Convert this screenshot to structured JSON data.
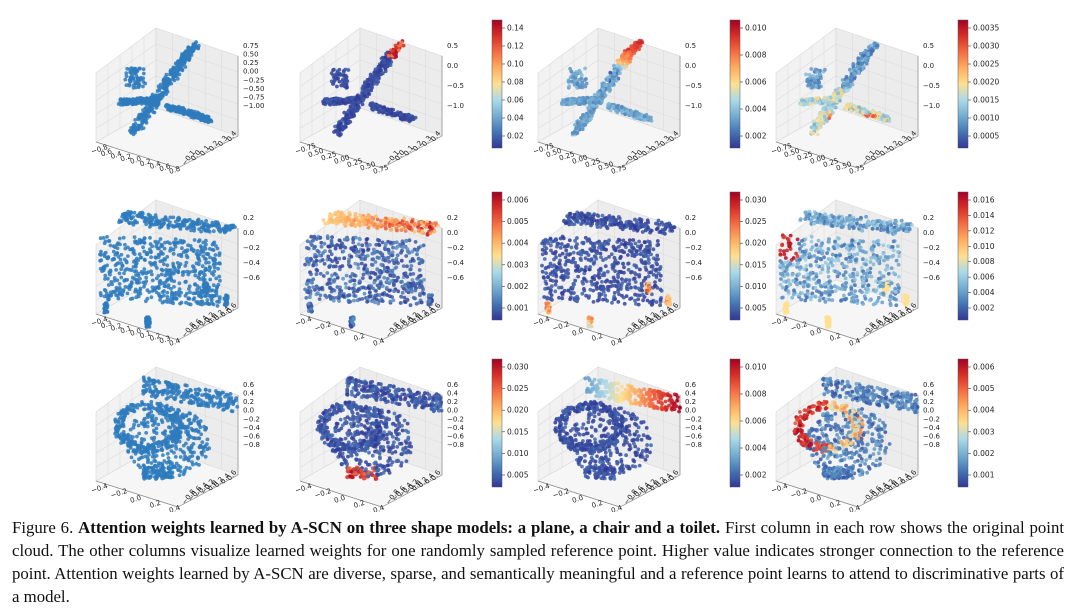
{
  "figure": {
    "rows": [
      {
        "name": "plane",
        "z_ticks": [
          "0.75",
          "0.50",
          "0.25",
          "0.00",
          "−0.25",
          "−0.50",
          "−0.75",
          "−1.00"
        ],
        "panels": [
          {
            "x_ticks": "−0.8 0.6 0.4 0.2 0.0 0.2 0.4 0.6 0.8",
            "y_ticks": [
              "0.4",
              "0.3",
              "0.2",
              "0.1",
              "0.0",
              "−0.1"
            ],
            "z_ticks": [
              "0.75",
              "0.50",
              "0.25",
              "0.00",
              "−0.25",
              "−0.50",
              "−0.75",
              "−1.00"
            ],
            "colorbar": null
          },
          {
            "x_ticks": "−0.75 0.50 0.25 0.00 0.25 0.50 0.75",
            "y_ticks": [
              "0.4",
              "0.3",
              "0.2",
              "0.1",
              "0.0",
              "−0.1"
            ],
            "z_ticks": [
              "0.5",
              "0.0",
              "−0.5",
              "−1.0"
            ],
            "colorbar": [
              "0.14",
              "0.12",
              "0.10",
              "0.08",
              "0.06",
              "0.04",
              "0.02"
            ]
          },
          {
            "x_ticks": "−0.75 0.50 0.25 0.00 0.25 0.50 0.75",
            "y_ticks": [
              "0.4",
              "0.3",
              "0.2",
              "0.1",
              "0.0",
              "−0.1"
            ],
            "z_ticks": [
              "0.5",
              "0.0",
              "−0.5",
              "−1.0"
            ],
            "colorbar": [
              "0.010",
              "0.008",
              "0.006",
              "0.004",
              "0.002"
            ]
          },
          {
            "x_ticks": "−0.75 0.50 0.25 0.00 0.25 0.50 0.75",
            "y_ticks": [
              "0.4",
              "0.3",
              "0.2",
              "0.1",
              "0.0",
              "−0.1"
            ],
            "z_ticks": [
              "0.5",
              "0.0",
              "−0.5",
              "−1.0"
            ],
            "colorbar": [
              "0.0035",
              "0.0030",
              "0.0025",
              "0.0020",
              "0.0015",
              "0.0010",
              "0.0005"
            ]
          }
        ]
      },
      {
        "name": "chair",
        "panels": [
          {
            "x_ticks": "−0.4 0.3 0.2 0.1 0.0 0.1 0.2 0.3 0.4",
            "y_ticks": [
              "0.6",
              "0.4",
              "0.2",
              "0.0",
              "−0.2",
              "−0.4",
              "−0.6",
              "−0.8"
            ],
            "z_ticks": [
              "0.2",
              "0.0",
              "−0.2",
              "−0.4",
              "−0.6"
            ],
            "colorbar": null
          },
          {
            "x_ticks": "−0.4 −0.2 0.0 0.2 0.4",
            "y_ticks": [
              "0.6",
              "0.4",
              "0.2",
              "0.0",
              "−0.2",
              "−0.4",
              "−0.6",
              "−0.8"
            ],
            "z_ticks": [
              "0.2",
              "0.0",
              "−0.2",
              "−0.4",
              "−0.6"
            ],
            "colorbar": [
              "0.006",
              "0.005",
              "0.004",
              "0.003",
              "0.002",
              "0.001"
            ]
          },
          {
            "x_ticks": "−0.4 −0.2 0.0 0.2 0.4",
            "y_ticks": [
              "0.6",
              "0.4",
              "0.2",
              "0.0",
              "−0.2",
              "−0.4",
              "−0.6",
              "−0.8"
            ],
            "z_ticks": [
              "0.2",
              "0.0",
              "−0.2",
              "−0.4",
              "−0.6"
            ],
            "colorbar": [
              "0.030",
              "0.025",
              "0.020",
              "0.015",
              "0.010",
              "0.005"
            ]
          },
          {
            "x_ticks": "−0.4 −0.2 0.0 0.2 0.4",
            "y_ticks": [
              "0.6",
              "0.4",
              "0.2",
              "0.0",
              "−0.2",
              "−0.4",
              "−0.6",
              "−0.8"
            ],
            "z_ticks": [
              "0.2",
              "0.0",
              "−0.2",
              "−0.4",
              "−0.6"
            ],
            "colorbar": [
              "0.016",
              "0.014",
              "0.012",
              "0.010",
              "0.008",
              "0.006",
              "0.004",
              "0.002"
            ]
          }
        ]
      },
      {
        "name": "toilet",
        "panels": [
          {
            "x_ticks": "−0.4 −0.2 0.0 0.2 0.4",
            "y_ticks": [
              "0.6",
              "0.4",
              "0.2",
              "0.0",
              "−0.2",
              "−0.4",
              "−0.6",
              "−0.8"
            ],
            "z_ticks": [
              "0.6",
              "0.4",
              "0.2",
              "0.0",
              "−0.2",
              "−0.4",
              "−0.6",
              "−0.8"
            ],
            "colorbar": null
          },
          {
            "x_ticks": "−0.4 −0.2 0.0 0.2 0.4",
            "y_ticks": [
              "0.6",
              "0.4",
              "0.2",
              "0.0",
              "−0.2",
              "−0.4",
              "−0.6",
              "−0.8"
            ],
            "z_ticks": [
              "0.6",
              "0.4",
              "0.2",
              "0.0",
              "−0.2",
              "−0.4",
              "−0.6",
              "−0.8"
            ],
            "colorbar": [
              "0.030",
              "0.025",
              "0.020",
              "0.015",
              "0.010",
              "0.005"
            ]
          },
          {
            "x_ticks": "−0.4 −0.2 0.0 0.2 0.4",
            "y_ticks": [
              "0.6",
              "0.4",
              "0.2",
              "0.0",
              "−0.2",
              "−0.4",
              "−0.6",
              "−0.8"
            ],
            "z_ticks": [
              "0.6",
              "0.4",
              "0.2",
              "0.0",
              "−0.2",
              "−0.4",
              "−0.6",
              "−0.8"
            ],
            "colorbar": [
              "0.010",
              "0.008",
              "0.006",
              "0.004",
              "0.002"
            ]
          },
          {
            "x_ticks": "−0.4 −0.2 0.0 0.2 0.4",
            "y_ticks": [
              "0.6",
              "0.4",
              "0.2",
              "0.0",
              "−0.2",
              "−0.4",
              "−0.6",
              "−0.8"
            ],
            "z_ticks": [
              "0.6",
              "0.4",
              "0.2",
              "0.0",
              "−0.2",
              "−0.4",
              "−0.6",
              "−0.8"
            ],
            "colorbar": [
              "0.006",
              "0.005",
              "0.004",
              "0.003",
              "0.002",
              "0.001"
            ]
          }
        ]
      }
    ],
    "colors": {
      "original": "#2e7bbd",
      "low": "#313695",
      "mid": "#fee090",
      "high": "#a50026"
    }
  },
  "caption": {
    "label": "Figure 6.",
    "bold_title": "Attention weights learned by A-SCN on three shape models: a plane, a chair and a toilet.",
    "body": "First column in each row shows the original point cloud. The other columns visualize learned weights for one randomly sampled reference point. Higher value indicates stronger connection to the reference point. Attention weights learned by A-SCN are diverse, sparse, and semantically meaningful and a reference point learns to attend to discriminative parts of a model."
  }
}
